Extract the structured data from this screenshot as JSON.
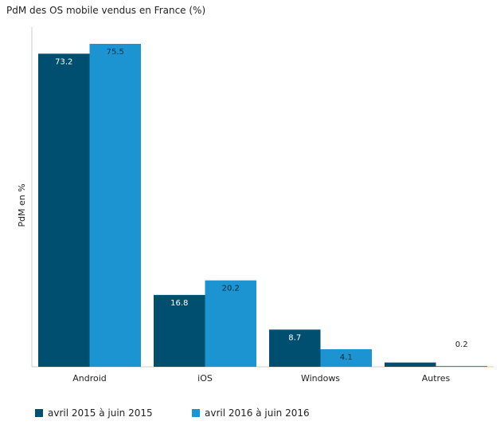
{
  "chart_data": {
    "type": "bar",
    "title": "PdM des OS mobile vendus en France (%)",
    "xlabel": "",
    "ylabel": "PdM en %",
    "categories": [
      "Android",
      "iOS",
      "Windows",
      "Autres"
    ],
    "series": [
      {
        "name": "avril 2015 à juin 2015",
        "values": [
          73.2,
          16.8,
          8.7,
          1.0
        ],
        "color": "#004f71",
        "labels": [
          "73.2",
          "16.8",
          "8.7",
          ""
        ]
      },
      {
        "name": "avril 2016 à juin 2016",
        "values": [
          75.5,
          20.2,
          4.1,
          0.2
        ],
        "color": "#1b94d1",
        "labels": [
          "75.5",
          "20.2",
          "4.1",
          "0.2"
        ]
      }
    ],
    "ylim": [
      0,
      75.5
    ],
    "grid": false,
    "legend_position": "bottom-left"
  }
}
